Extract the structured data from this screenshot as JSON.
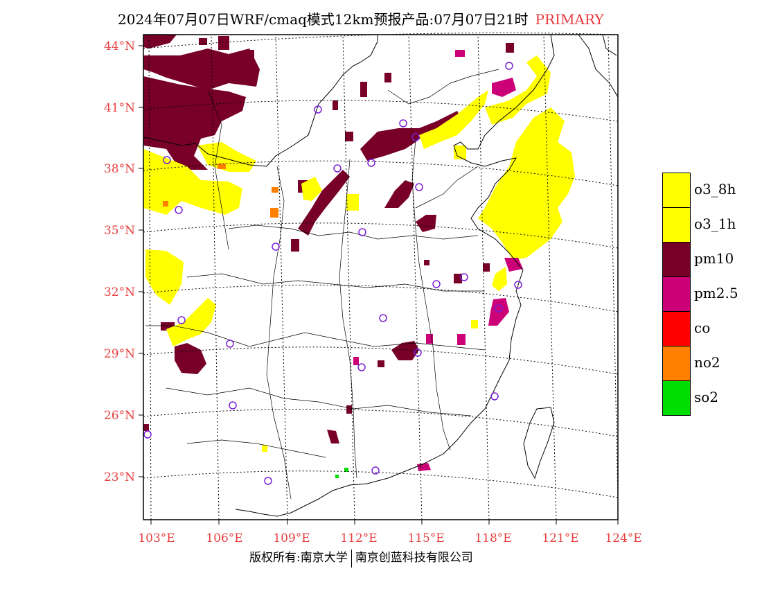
{
  "title": {
    "main": "2024年07月07日WRF/cmaq模式12km预报产品:07月07日21时",
    "tag": "PRIMARY"
  },
  "axes": {
    "lat_labels": [
      "44°N",
      "41°N",
      "38°N",
      "35°N",
      "32°N",
      "29°N",
      "26°N",
      "23°N"
    ],
    "lon_labels": [
      "103°E",
      "106°E",
      "109°E",
      "112°E",
      "115°E",
      "118°E",
      "121°E",
      "124°E"
    ]
  },
  "legend": {
    "items": [
      {
        "label": "o3_8h",
        "color": "#ffff00"
      },
      {
        "label": "o3_1h",
        "color": "#ffff00"
      },
      {
        "label": "pm10",
        "color": "#780028"
      },
      {
        "label": "pm2.5",
        "color": "#cc0077"
      },
      {
        "label": "co",
        "color": "#ff0000"
      },
      {
        "label": "no2",
        "color": "#ff7f00"
      },
      {
        "label": "so2",
        "color": "#00dd00"
      }
    ]
  },
  "copyright": {
    "left": "版权所有:南京大学",
    "right": "南京创蓝科技有限公司"
  },
  "colors": {
    "station_marker": "#7a1fd6",
    "label_red": "#e84040"
  }
}
